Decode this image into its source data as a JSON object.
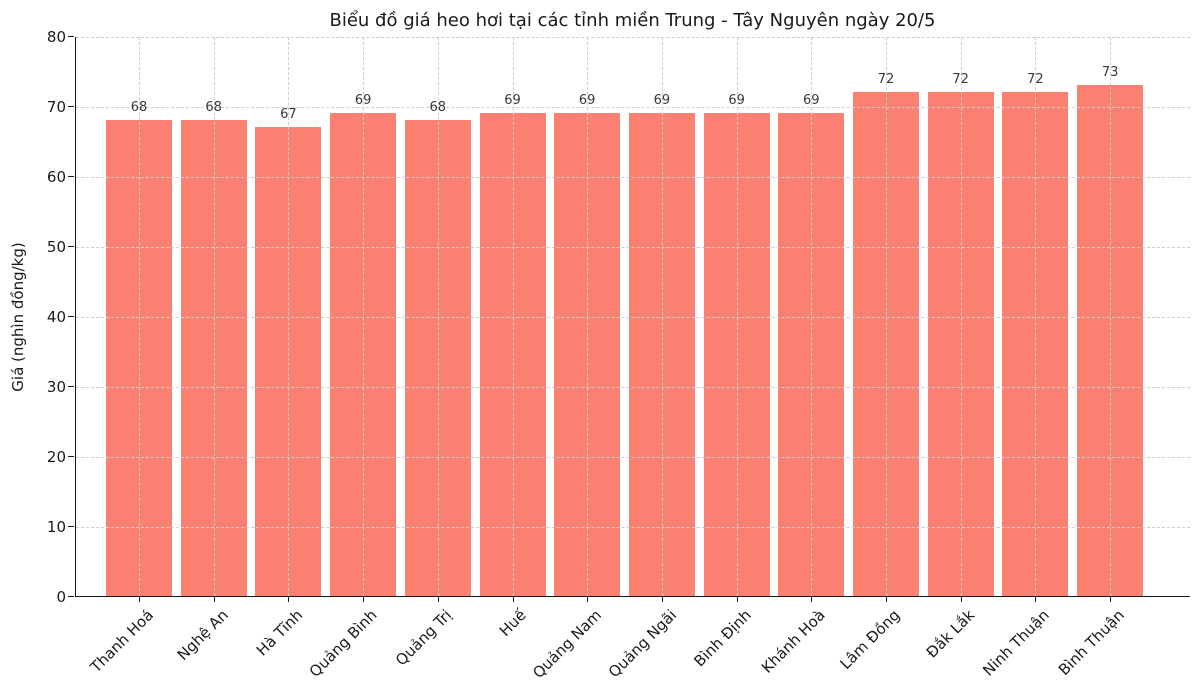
{
  "title": "Biểu đồ giá heo hơi tại các tỉnh miền Trung - Tây Nguyên ngày 20/5",
  "chart_data": {
    "type": "bar",
    "title": "Biểu đồ giá heo hơi tại các tỉnh miền Trung - Tây Nguyên ngày 20/5",
    "categories": [
      "Thanh Hoá",
      "Nghệ An",
      "Hà Tĩnh",
      "Quảng Bình",
      "Quảng Trị",
      "Huế",
      "Quảng Nam",
      "Quảng Ngãi",
      "Bình Định",
      "Khánh Hoà",
      "Lâm Đồng",
      "Đắk Lắk",
      "Ninh Thuận",
      "Bình Thuận"
    ],
    "values": [
      68,
      68,
      67,
      69,
      68,
      69,
      69,
      69,
      69,
      69,
      72,
      72,
      72,
      73
    ],
    "value_labels_shown": true,
    "xlabel": "",
    "ylabel": "Giá (nghìn đồng/kg)",
    "ylim": [
      0,
      80
    ],
    "yticks": [
      0,
      10,
      20,
      30,
      40,
      50,
      60,
      70,
      80
    ],
    "bar_color": "#fa8072",
    "grid": "dashed horizontal and vertical, drawn over bars",
    "grid_color": "#cdcdcd",
    "axis_color": "#1a1a1a",
    "legend": "none"
  }
}
